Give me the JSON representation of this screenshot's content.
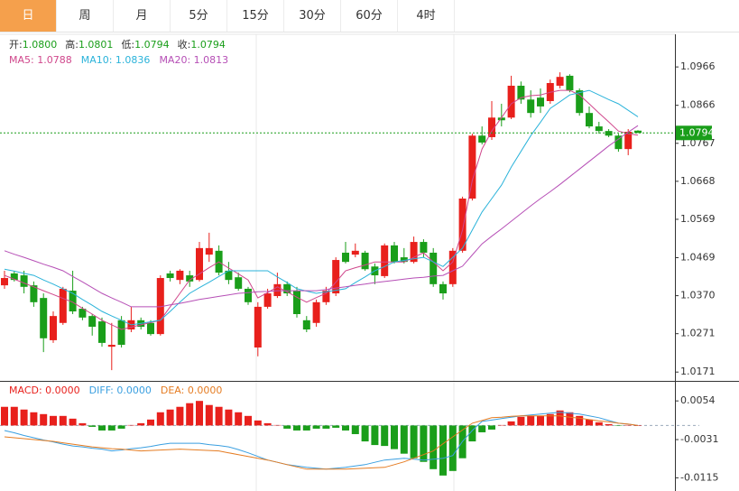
{
  "tabs": [
    "日",
    "周",
    "月",
    "5分",
    "15分",
    "30分",
    "60分",
    "4时"
  ],
  "selected_tab": 0,
  "chart_data": [
    {
      "type": "candlestick",
      "info": [
        {
          "label": "开:",
          "value": "1.0800"
        },
        {
          "label": "高:",
          "value": "1.0801"
        },
        {
          "label": "低:",
          "value": "1.0794"
        },
        {
          "label": "收:",
          "value": "1.0794"
        }
      ],
      "info_color": "#1a9e1a",
      "open": [
        1.0397,
        1.0428,
        1.0423,
        1.0397,
        1.0364,
        1.0254,
        1.0299,
        1.0383,
        1.0336,
        1.0317,
        1.0303,
        1.0237,
        1.0306,
        1.0282,
        1.0306,
        1.0299,
        1.027,
        1.0428,
        1.0411,
        1.0423,
        1.0411,
        1.0477,
        1.0487,
        1.0435,
        1.0418,
        1.0388,
        1.0235,
        1.0341,
        1.0369,
        1.04,
        1.0383,
        1.0306,
        1.0299,
        1.0353,
        1.0376,
        1.0482,
        1.0477,
        1.0482,
        1.0446,
        1.0421,
        1.0501,
        1.047,
        1.0458,
        1.051,
        1.0482,
        1.04,
        1.04,
        1.0487,
        1.0623,
        1.0787,
        1.0783,
        1.0834,
        1.0834,
        1.0917,
        1.0881,
        1.0886,
        1.0877,
        1.0917,
        1.0943,
        1.0905,
        1.0846,
        1.0811,
        1.0799,
        1.0787,
        1.0752,
        1.08
      ],
      "high": [
        1.0435,
        1.0435,
        1.0435,
        1.0407,
        1.0376,
        1.0329,
        1.0393,
        1.0435,
        1.0341,
        1.0322,
        1.0313,
        1.0299,
        1.0317,
        1.0341,
        1.0313,
        1.0306,
        1.0423,
        1.0435,
        1.0439,
        1.0435,
        1.051,
        1.0534,
        1.0501,
        1.0458,
        1.043,
        1.0393,
        1.0353,
        1.0388,
        1.043,
        1.0407,
        1.0393,
        1.0317,
        1.036,
        1.0393,
        1.047,
        1.051,
        1.0506,
        1.0487,
        1.0454,
        1.0506,
        1.051,
        1.0494,
        1.0524,
        1.0517,
        1.0494,
        1.0407,
        1.0494,
        1.0628,
        1.0792,
        1.0811,
        1.0877,
        1.087,
        1.0943,
        1.0928,
        1.0905,
        1.091,
        1.0933,
        1.0952,
        1.0947,
        1.091,
        1.0863,
        1.0823,
        1.0804,
        1.0792,
        1.0804,
        1.0801
      ],
      "low": [
        1.0388,
        1.0407,
        1.0376,
        1.0341,
        1.0223,
        1.0247,
        1.0294,
        1.0322,
        1.0306,
        1.0266,
        1.0237,
        1.0176,
        1.0235,
        1.0275,
        1.0282,
        1.0266,
        1.0266,
        1.0407,
        1.04,
        1.0393,
        1.0407,
        1.0458,
        1.0423,
        1.04,
        1.0383,
        1.0346,
        1.0212,
        1.0336,
        1.0364,
        1.0369,
        1.0313,
        1.0275,
        1.0289,
        1.0346,
        1.0369,
        1.0454,
        1.047,
        1.0435,
        1.04,
        1.0416,
        1.0454,
        1.0454,
        1.0454,
        1.047,
        1.0393,
        1.036,
        1.0393,
        1.0482,
        1.0618,
        1.0764,
        1.0776,
        1.0811,
        1.083,
        1.087,
        1.0834,
        1.0846,
        1.087,
        1.091,
        1.09,
        1.0839,
        1.0806,
        1.0792,
        1.0783,
        1.0745,
        1.0736,
        1.0794
      ],
      "close": [
        1.0416,
        1.0411,
        1.0393,
        1.0353,
        1.0259,
        1.0317,
        1.0388,
        1.0329,
        1.0313,
        1.0289,
        1.0247,
        1.0242,
        1.0242,
        1.0306,
        1.0289,
        1.027,
        1.0416,
        1.0416,
        1.0435,
        1.0407,
        1.0494,
        1.0494,
        1.043,
        1.0411,
        1.0388,
        1.0353,
        1.0341,
        1.0376,
        1.04,
        1.0376,
        1.0322,
        1.0282,
        1.0353,
        1.0383,
        1.0463,
        1.0458,
        1.0487,
        1.0439,
        1.0423,
        1.0501,
        1.0458,
        1.0458,
        1.051,
        1.0482,
        1.04,
        1.0376,
        1.0487,
        1.0623,
        1.0787,
        1.0769,
        1.0834,
        1.0827,
        1.0917,
        1.0881,
        1.0846,
        1.0863,
        1.0924,
        1.094,
        1.0905,
        1.0846,
        1.0811,
        1.0799,
        1.0787,
        1.0752,
        1.0797,
        1.0794
      ],
      "up_color": "#e8201c",
      "down_color": "#1a9e1a",
      "series": [
        {
          "name": "MA5: 1.0788",
          "color": "#d0478c",
          "values": [
            1.0423,
            1.0413,
            1.0403,
            1.0393,
            1.0383,
            1.0373,
            1.0363,
            1.0353,
            1.0337,
            1.0322,
            1.0306,
            1.0294,
            1.0282,
            1.0288,
            1.0294,
            1.03,
            1.0306,
            1.0341,
            1.0376,
            1.0411,
            1.0427,
            1.0443,
            1.0458,
            1.0442,
            1.0427,
            1.0411,
            1.0364,
            1.0378,
            1.0393,
            1.038,
            1.0366,
            1.0353,
            1.0365,
            1.0376,
            1.0405,
            1.0435,
            1.0443,
            1.045,
            1.0458,
            1.0458,
            1.0458,
            1.0458,
            1.047,
            1.0482,
            1.0458,
            1.0435,
            1.0458,
            1.0541,
            1.067,
            1.0752,
            1.0799,
            1.0834,
            1.087,
            1.0886,
            1.0891,
            1.0893,
            1.09,
            1.0905,
            1.0905,
            1.0893,
            1.087,
            1.0846,
            1.0823,
            1.0799,
            1.0792,
            1.0788
          ]
        },
        {
          "name": "MA10: 1.0836",
          "color": "#2bb3da",
          "values": [
            1.0439,
            1.0434,
            1.0428,
            1.0423,
            1.0411,
            1.04,
            1.0388,
            1.0376,
            1.036,
            1.0345,
            1.0329,
            1.0317,
            1.0306,
            1.0294,
            1.0298,
            1.0302,
            1.0306,
            1.0329,
            1.0353,
            1.0376,
            1.0391,
            1.0405,
            1.042,
            1.0435,
            1.0435,
            1.0435,
            1.0435,
            1.0435,
            1.0419,
            1.0404,
            1.0388,
            1.0382,
            1.0376,
            1.038,
            1.0384,
            1.0388,
            1.0404,
            1.0419,
            1.0435,
            1.0446,
            1.0458,
            1.0462,
            1.0466,
            1.047,
            1.0458,
            1.0446,
            1.047,
            1.0494,
            1.0541,
            1.0588,
            1.0623,
            1.0658,
            1.0705,
            1.0746,
            1.0787,
            1.0822,
            1.0858,
            1.0875,
            1.0893,
            1.0899,
            1.0905,
            1.0893,
            1.0881,
            1.087,
            1.0853,
            1.0836
          ]
        },
        {
          "name": "MA20: 1.0813",
          "color": "#b64fb6",
          "values": [
            1.0487,
            1.0478,
            1.047,
            1.0461,
            1.0452,
            1.0444,
            1.0435,
            1.042,
            1.0406,
            1.0391,
            1.0376,
            1.0364,
            1.0353,
            1.0341,
            1.0341,
            1.0341,
            1.0341,
            1.0346,
            1.035,
            1.0355,
            1.036,
            1.0364,
            1.0368,
            1.0372,
            1.0376,
            1.0378,
            1.038,
            1.0381,
            1.0383,
            1.0383,
            1.0383,
            1.0383,
            1.0383,
            1.0386,
            1.039,
            1.0393,
            1.0397,
            1.04,
            1.0404,
            1.0407,
            1.041,
            1.0413,
            1.0416,
            1.0418,
            1.0421,
            1.0423,
            1.0435,
            1.0447,
            1.0476,
            1.0505,
            1.0525,
            1.0544,
            1.0564,
            1.0584,
            1.0604,
            1.0623,
            1.0641,
            1.066,
            1.068,
            1.07,
            1.072,
            1.074,
            1.076,
            1.0778,
            1.0796,
            1.0813
          ]
        }
      ],
      "last_price": 1.0794,
      "last_color": "#1a9e1a",
      "ylim": [
        1.0148,
        1.1051
      ],
      "yticks": [
        1.0171,
        1.0271,
        {
          "value": 1.037,
          "label": "1.0370"
        },
        1.0469,
        1.0569,
        1.0668,
        1.0767,
        1.0866,
        1.0966
      ]
    },
    {
      "type": "macd",
      "neg_color": "#1a9e1a",
      "series": [
        {
          "name": "MACD: 0.0000",
          "color": "#e8201c",
          "values": [
            0.0041,
            0.0041,
            0.0035,
            0.0029,
            0.0025,
            0.0021,
            0.0021,
            0.0015,
            0.0005,
            -0.0003,
            -0.0011,
            -0.0011,
            -0.0007,
            0.0001,
            0.0005,
            0.0013,
            0.0029,
            0.0035,
            0.0041,
            0.0049,
            0.0054,
            0.0045,
            0.0041,
            0.0035,
            0.0029,
            0.0021,
            0.0011,
            0.0005,
            0.0001,
            -0.0007,
            -0.0011,
            -0.0011,
            -0.0007,
            -0.0007,
            -0.0005,
            -0.0011,
            -0.0019,
            -0.0035,
            -0.0043,
            -0.0045,
            -0.0052,
            -0.0062,
            -0.0072,
            -0.008,
            -0.0096,
            -0.011,
            -0.01,
            -0.0072,
            -0.0035,
            -0.0015,
            -0.0009,
            0.0001,
            0.0009,
            0.0019,
            0.0021,
            0.0021,
            0.0025,
            0.0033,
            0.0029,
            0.0021,
            0.0013,
            0.0007,
            0.0003,
            -0.0001,
            0.0001,
            0
          ]
        },
        {
          "name": "DIFF: 0.0000",
          "color": "#3a9fe0",
          "values": [
            -0.0011,
            -0.0016,
            -0.0022,
            -0.0027,
            -0.0032,
            -0.0036,
            -0.0041,
            -0.0045,
            -0.0047,
            -0.005,
            -0.0052,
            -0.0056,
            -0.0054,
            -0.0051,
            -0.0049,
            -0.0046,
            -0.0042,
            -0.0039,
            -0.0039,
            -0.0039,
            -0.0039,
            -0.0042,
            -0.0044,
            -0.0047,
            -0.0053,
            -0.006,
            -0.0068,
            -0.0076,
            -0.0081,
            -0.0086,
            -0.0089,
            -0.0092,
            -0.0094,
            -0.0096,
            -0.0094,
            -0.0092,
            -0.0089,
            -0.0086,
            -0.0081,
            -0.0076,
            -0.0074,
            -0.0072,
            -0.0074,
            -0.0076,
            -0.0074,
            -0.0072,
            -0.0066,
            -0.0035,
            -0.0011,
            0.0009,
            0.0012,
            0.0015,
            0.0018,
            0.0021,
            0.0023,
            0.0025,
            0.0027,
            0.0029,
            0.0027,
            0.0025,
            0.0021,
            0.0017,
            0.0011,
            0.0005,
            0.0003,
            0
          ]
        },
        {
          "name": "DEA: 0.0000",
          "color": "#e57c22",
          "values": [
            -0.0025,
            -0.0027,
            -0.0029,
            -0.0031,
            -0.0033,
            -0.0035,
            -0.0038,
            -0.0041,
            -0.0044,
            -0.0047,
            -0.0049,
            -0.0051,
            -0.0052,
            -0.0054,
            -0.0056,
            -0.0055,
            -0.0054,
            -0.0053,
            -0.0052,
            -0.0053,
            -0.0054,
            -0.0055,
            -0.0056,
            -0.006,
            -0.0064,
            -0.0068,
            -0.0072,
            -0.0076,
            -0.0081,
            -0.0086,
            -0.0091,
            -0.0096,
            -0.0096,
            -0.0096,
            -0.0096,
            -0.0096,
            -0.0095,
            -0.0094,
            -0.0093,
            -0.0092,
            -0.0086,
            -0.008,
            -0.0072,
            -0.0064,
            -0.0056,
            -0.004,
            -0.0025,
            -0.001,
            0.0005,
            0.0011,
            0.0017,
            0.0018,
            0.002,
            0.0021,
            0.0021,
            0.0021,
            0.0021,
            0.0021,
            0.0018,
            0.0016,
            0.0013,
            0.001,
            0.0008,
            0.0005,
            0.0003,
            0
          ]
        }
      ],
      "ylim": [
        -0.0144,
        0.0098
      ],
      "yticks": [
        0.0054,
        -0.0031,
        -0.0115
      ]
    }
  ]
}
